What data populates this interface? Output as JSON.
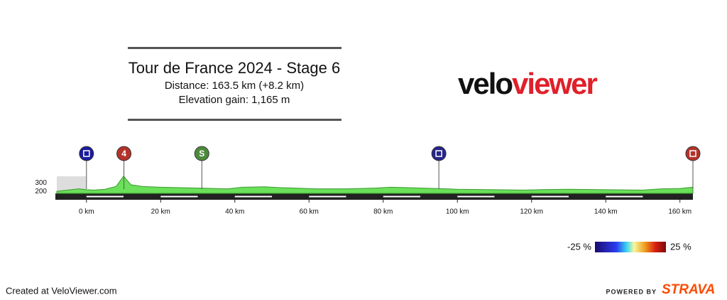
{
  "chart_data": {
    "type": "area",
    "title": "Tour de France 2024 - Stage 6",
    "subtitle": [
      "Distance: 163.5 km (+8.2 km)",
      "Elevation gain: 1,165 m"
    ],
    "logo": [
      "velo",
      "viewer"
    ],
    "x": [
      -8,
      -2,
      0,
      2,
      5,
      8,
      10,
      12,
      15,
      20,
      30,
      38,
      42,
      48,
      52,
      56,
      62,
      70,
      78,
      82,
      86,
      94,
      100,
      110,
      118,
      122,
      130,
      140,
      150,
      155,
      160,
      163.5
    ],
    "values": [
      200,
      230,
      220,
      215,
      225,
      260,
      385,
      280,
      260,
      250,
      240,
      230,
      250,
      255,
      245,
      240,
      230,
      230,
      240,
      250,
      245,
      235,
      225,
      220,
      215,
      220,
      225,
      220,
      215,
      230,
      235,
      250
    ],
    "color": "#6be05a",
    "xlim": [
      -8,
      163.5
    ],
    "ylim": [
      175,
      385
    ],
    "xticks": [
      {
        "value": 0,
        "label": "0 km"
      },
      {
        "value": 20,
        "label": "20 km"
      },
      {
        "value": 40,
        "label": "40 km"
      },
      {
        "value": 60,
        "label": "60 km"
      },
      {
        "value": 80,
        "label": "80 km"
      },
      {
        "value": 100,
        "label": "100 km"
      },
      {
        "value": 120,
        "label": "120 km"
      },
      {
        "value": 140,
        "label": "140 km"
      },
      {
        "value": 160,
        "label": "160 km"
      }
    ],
    "yticks": [
      200,
      300
    ],
    "markers": [
      {
        "x": 0,
        "color": "#1c1c9e"
      },
      {
        "x": 10.1,
        "color": "#b3332b",
        "text": "4"
      },
      {
        "x": 31.1,
        "color": "#4c8a3c",
        "text": "S"
      },
      {
        "x": 95,
        "color": "#25258c"
      },
      {
        "x": 163.5,
        "color": "#b3332b"
      }
    ],
    "colorbar": {
      "ticks": [
        {
          "value": -25,
          "label": "-25 %"
        },
        {
          "value": 25,
          "label": "25 %"
        }
      ]
    },
    "footer": "Created at VeloViewer.com",
    "powered_by": [
      "POWERED BY",
      "STRAVA"
    ]
  }
}
